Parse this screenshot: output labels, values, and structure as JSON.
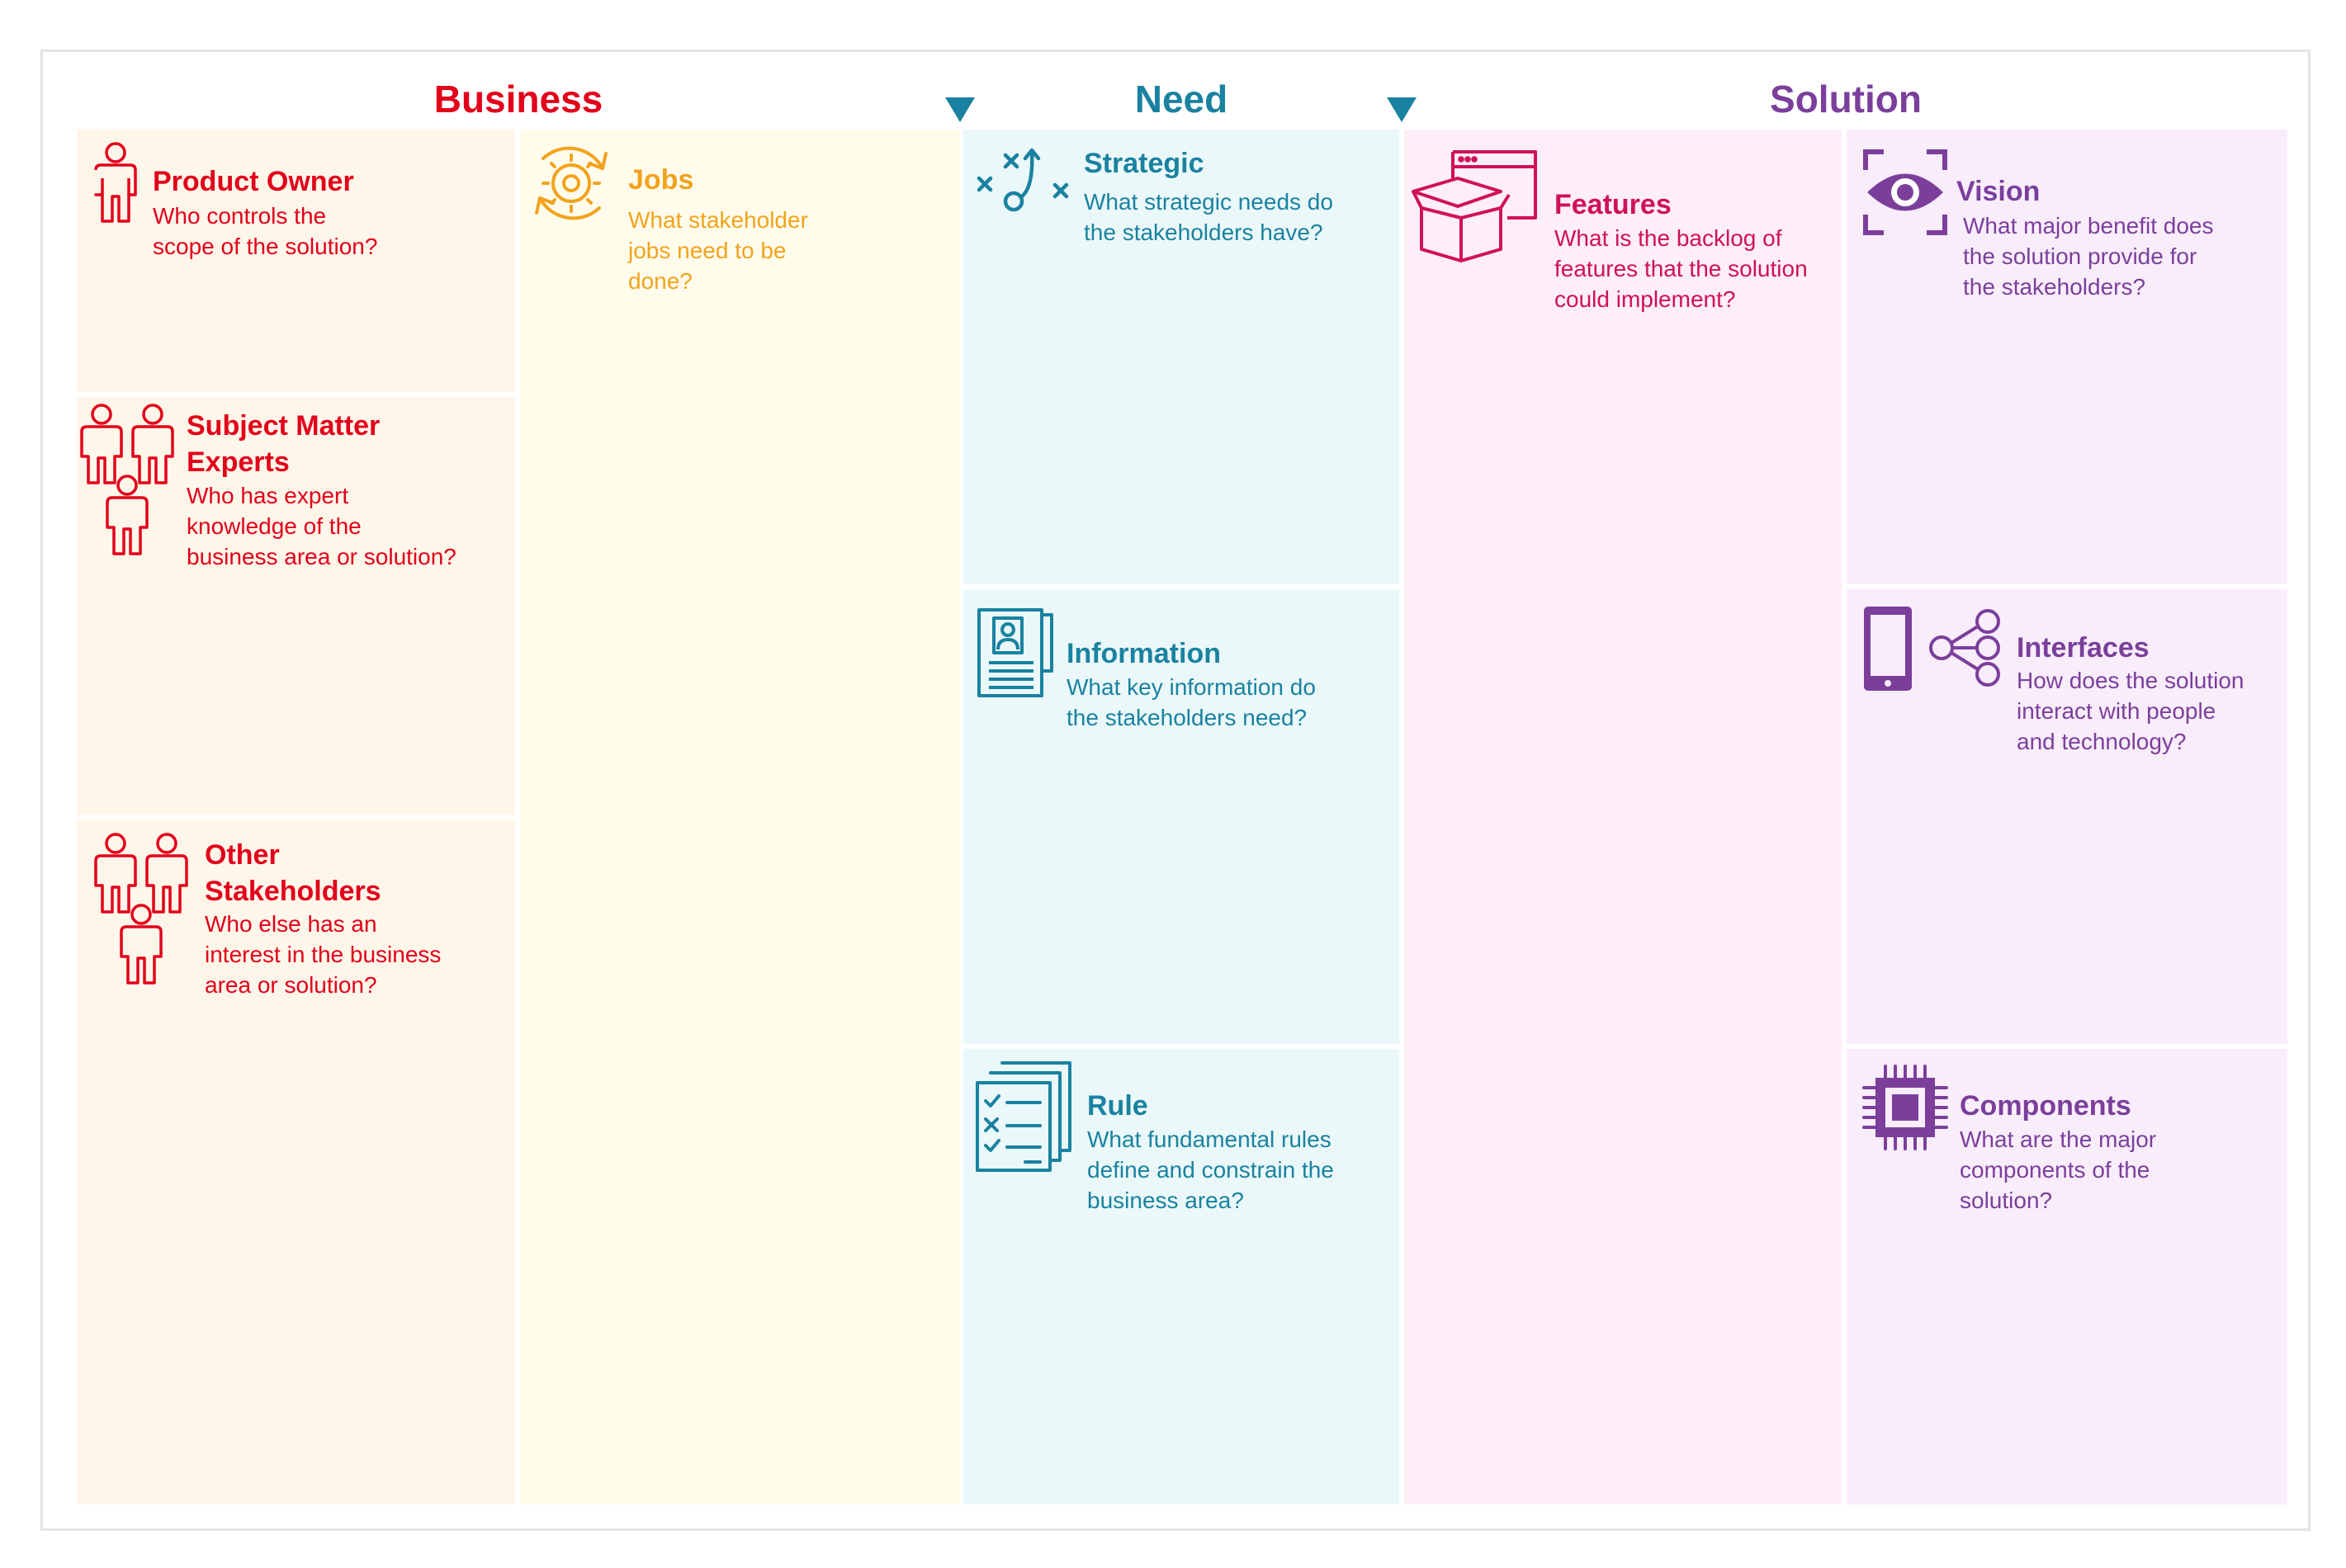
{
  "headings": {
    "business": "Business",
    "need": "Need",
    "solution": "Solution"
  },
  "colors": {
    "business": "#e2001a",
    "jobs": "#f2a31c",
    "need": "#1a82a0",
    "features": "#d0105a",
    "solution": "#7b3f9b",
    "business_bg": "#fff6ea",
    "jobs_bg": "#fffcec",
    "need_bg": "#eaf8fa",
    "features_bg": "#fdeef8",
    "solution_bg": "#f9edfc"
  },
  "cards": {
    "product_owner": {
      "title": "Product Owner",
      "desc": [
        "Who controls the",
        "scope of the solution?"
      ],
      "icon": "person-icon"
    },
    "sme": {
      "title": [
        "Subject Matter",
        "Experts"
      ],
      "desc": [
        "Who has expert",
        "knowledge of the",
        "business area or solution?"
      ],
      "icon": "group-icon"
    },
    "other": {
      "title": [
        "Other",
        "Stakeholders"
      ],
      "desc": [
        "Who else has an",
        "interest in the business",
        "area or solution?"
      ],
      "icon": "group-icon"
    },
    "jobs": {
      "title": "Jobs",
      "desc": [
        "What stakeholder",
        "jobs need to be",
        "done?"
      ],
      "icon": "gear-cycle-icon"
    },
    "strategic": {
      "title": "Strategic",
      "desc": [
        "What strategic needs do",
        "the stakeholders have?"
      ],
      "icon": "strategy-play-icon"
    },
    "information": {
      "title": "Information",
      "desc": [
        "What key information do",
        "the stakeholders need?"
      ],
      "icon": "profile-document-icon"
    },
    "rule": {
      "title": "Rule",
      "desc": [
        "What fundamental rules",
        "define and constrain the",
        "business area?"
      ],
      "icon": "checklist-icon"
    },
    "features": {
      "title": "Features",
      "desc": [
        "What is the backlog of",
        "features that the solution",
        "could implement?"
      ],
      "icon": "box-window-icon"
    },
    "vision": {
      "title": "Vision",
      "desc": [
        "What major benefit does",
        "the solution provide for",
        "the stakeholders?"
      ],
      "icon": "eye-icon"
    },
    "interfaces": {
      "title": "Interfaces",
      "desc": [
        "How does the solution",
        "interact with people",
        "and technology?"
      ],
      "icon": "phone-share-icon"
    },
    "components": {
      "title": "Components",
      "desc": [
        "What are the major",
        "components of the",
        "solution?"
      ],
      "icon": "chip-icon"
    }
  }
}
